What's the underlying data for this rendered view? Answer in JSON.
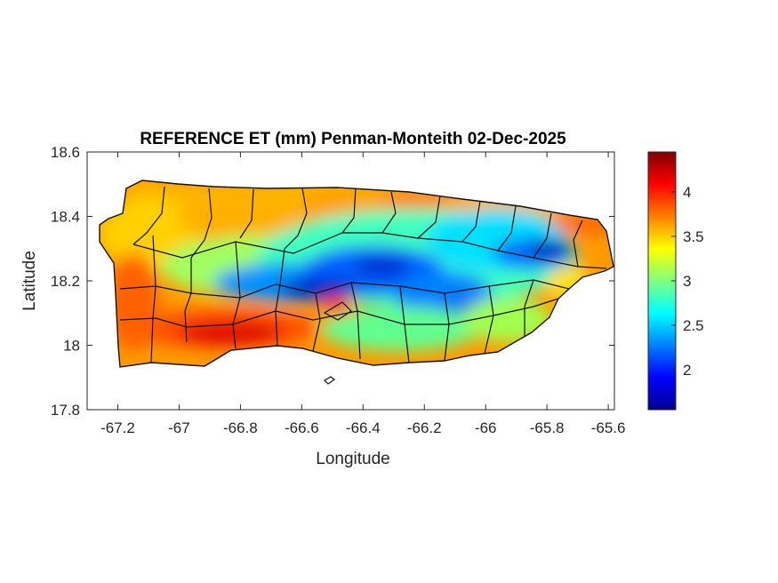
{
  "figure": {
    "title": "REFERENCE ET (mm) Penman-Monteith 02-Dec-2025",
    "xlabel": "Longitude",
    "ylabel": "Latitude"
  },
  "map": {
    "type": "choropleth-raster",
    "region_outline": "island with municipality boundaries",
    "xlim": [
      -67.3,
      -65.58
    ],
    "ylim": [
      17.8,
      18.6
    ],
    "x_ticks": [
      "-67.2",
      "-67",
      "-66.8",
      "-66.6",
      "-66.4",
      "-66.2",
      "-66",
      "-65.8",
      "-65.6"
    ],
    "y_ticks": [
      "18.6",
      "18.4",
      "18.2",
      "18",
      "17.8"
    ],
    "pattern": "high values (4+) along south and west coasts and northeast; low values (about 1.5-2.5) across the central mountains and interior"
  },
  "colorbar": {
    "colormap": "jet",
    "range": [
      1.55,
      4.45
    ],
    "ticks": [
      "2",
      "2.5",
      "3",
      "3.5",
      "4"
    ],
    "colors": [
      "#00008f",
      "#0000ff",
      "#0080ff",
      "#00ffff",
      "#80ff80",
      "#ffff00",
      "#ff8000",
      "#ff0000",
      "#800000"
    ]
  }
}
